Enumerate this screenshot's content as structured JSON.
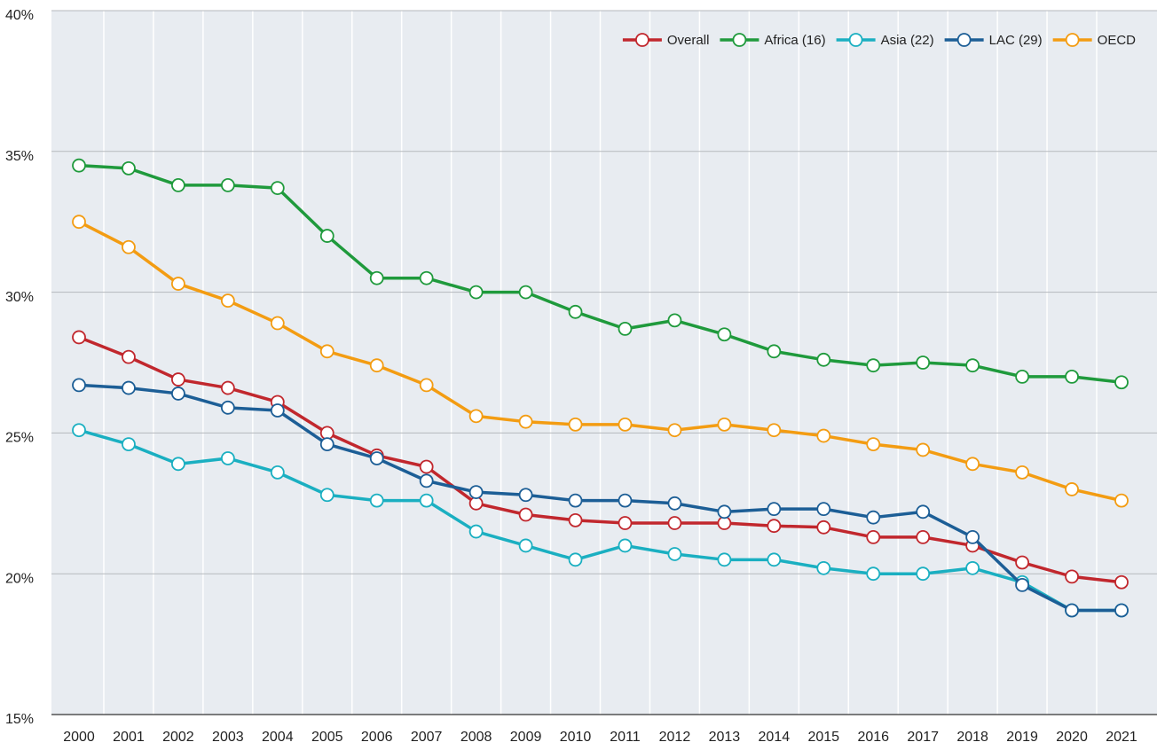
{
  "chart_data": {
    "type": "line",
    "categories": [
      "2000",
      "2001",
      "2002",
      "2003",
      "2004",
      "2005",
      "2006",
      "2007",
      "2008",
      "2009",
      "2010",
      "2011",
      "2012",
      "2013",
      "2014",
      "2015",
      "2016",
      "2017",
      "2018",
      "2019",
      "2020",
      "2021"
    ],
    "series": [
      {
        "name": "Overall",
        "color": "#c1272d",
        "values": [
          28.4,
          27.7,
          26.9,
          26.6,
          26.1,
          25.0,
          24.2,
          23.8,
          22.5,
          22.1,
          21.9,
          21.8,
          21.8,
          21.8,
          21.7,
          21.65,
          21.3,
          21.3,
          21.0,
          20.4,
          19.9,
          19.7
        ]
      },
      {
        "name": "Africa (16)",
        "color": "#1f9a3c",
        "values": [
          34.5,
          34.4,
          33.8,
          33.8,
          33.7,
          32.0,
          30.5,
          30.5,
          30.0,
          30.0,
          29.3,
          28.7,
          29.0,
          28.5,
          27.9,
          27.6,
          27.4,
          27.5,
          27.4,
          27.0,
          27.0,
          26.8
        ]
      },
      {
        "name": "Asia (22)",
        "color": "#1aafc1",
        "values": [
          25.1,
          24.6,
          23.9,
          24.1,
          23.6,
          22.8,
          22.6,
          22.6,
          21.5,
          21.0,
          20.5,
          21.0,
          20.7,
          20.5,
          20.5,
          20.2,
          20.0,
          20.0,
          20.2,
          19.7,
          18.7,
          18.7
        ]
      },
      {
        "name": "LAC (29)",
        "color": "#1c5e96",
        "values": [
          26.7,
          26.6,
          26.4,
          25.9,
          25.8,
          24.6,
          24.1,
          23.3,
          22.9,
          22.8,
          22.6,
          22.6,
          22.5,
          22.2,
          22.3,
          22.3,
          22.0,
          22.2,
          21.3,
          19.6,
          18.7,
          18.7
        ]
      },
      {
        "name": "OECD",
        "color": "#f39c12",
        "values": [
          32.5,
          31.6,
          30.3,
          29.7,
          28.9,
          27.9,
          27.4,
          26.7,
          25.6,
          25.4,
          25.3,
          25.3,
          25.1,
          25.3,
          25.1,
          24.9,
          24.6,
          24.4,
          23.9,
          23.6,
          23.0,
          22.6
        ]
      }
    ],
    "ylim": [
      15,
      40
    ],
    "yticks": [
      {
        "value": 15,
        "label": "15%"
      },
      {
        "value": 20,
        "label": "20%"
      },
      {
        "value": 25,
        "label": "25%"
      },
      {
        "value": 30,
        "label": "30%"
      },
      {
        "value": 35,
        "label": "35%"
      },
      {
        "value": 40,
        "label": "40%"
      }
    ],
    "grid": true,
    "legend": "top-right"
  }
}
